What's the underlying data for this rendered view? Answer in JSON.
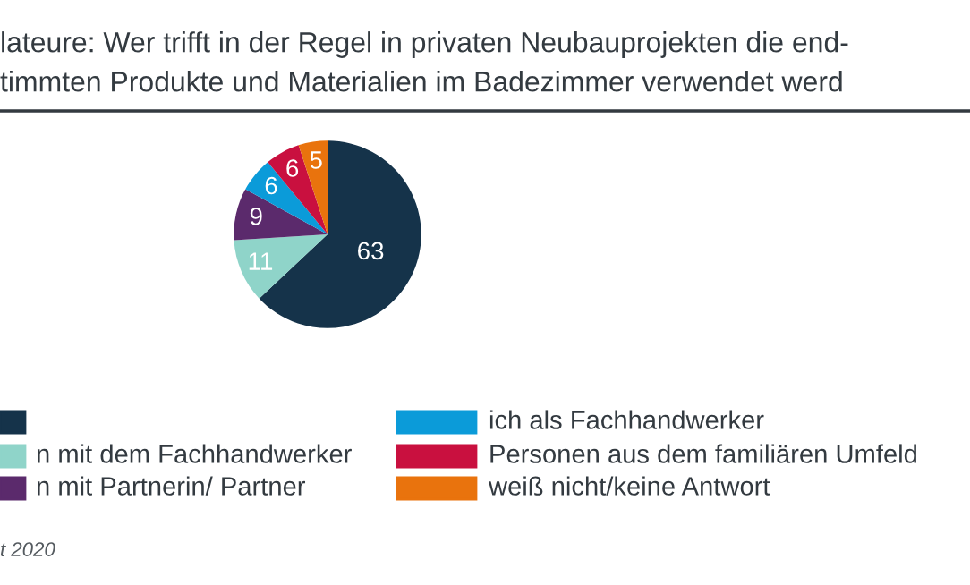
{
  "chart_data": {
    "type": "pie",
    "title": "lateure: Wer trifft in der Regel in privaten Neubauprojekten die end-\ntimmten Produkte und Materialien im Badezimmer verwendet werd",
    "categories": [
      null,
      "n mit dem Fachhandwerker",
      "n mit Partnerin/ Partner",
      "ich als Fachhandwerker",
      "Personen aus dem familiären Umfeld",
      "weiß nicht/keine Antwort"
    ],
    "values": [
      63,
      11,
      9,
      6,
      6,
      5
    ],
    "colors": [
      "#15334a",
      "#8fd4c9",
      "#5b2a6c",
      "#0b9bd9",
      "#c9103f",
      "#e9730d"
    ],
    "data_labels": true,
    "legend": "bottom",
    "annotations": [
      "t 2020"
    ]
  }
}
